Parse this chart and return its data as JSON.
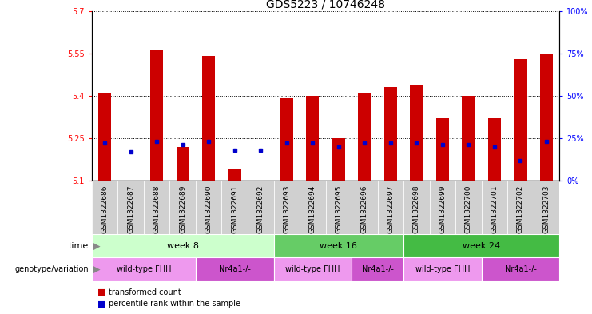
{
  "title": "GDS5223 / 10746248",
  "samples": [
    "GSM1322686",
    "GSM1322687",
    "GSM1322688",
    "GSM1322689",
    "GSM1322690",
    "GSM1322691",
    "GSM1322692",
    "GSM1322693",
    "GSM1322694",
    "GSM1322695",
    "GSM1322696",
    "GSM1322697",
    "GSM1322698",
    "GSM1322699",
    "GSM1322700",
    "GSM1322701",
    "GSM1322702",
    "GSM1322703"
  ],
  "transformed_count": [
    5.41,
    5.1,
    5.56,
    5.22,
    5.54,
    5.14,
    5.1,
    5.39,
    5.4,
    5.25,
    5.41,
    5.43,
    5.44,
    5.32,
    5.4,
    5.32,
    5.53,
    5.55
  ],
  "percentile_rank": [
    22,
    17,
    23,
    21,
    23,
    18,
    18,
    22,
    22,
    20,
    22,
    22,
    22,
    21,
    21,
    20,
    12,
    23
  ],
  "ylim_left": [
    5.1,
    5.7
  ],
  "ylim_right": [
    0,
    100
  ],
  "yticks_left": [
    5.1,
    5.25,
    5.4,
    5.55,
    5.7
  ],
  "yticks_right": [
    0,
    25,
    50,
    75,
    100
  ],
  "bar_color": "#cc0000",
  "dot_color": "#0000cc",
  "bar_width": 0.5,
  "background_color": "#ffffff",
  "title_fontsize": 10,
  "tick_label_fontsize": 7,
  "time_groups": [
    {
      "label": "week 8",
      "start": 0,
      "end": 7,
      "color": "#ccffcc"
    },
    {
      "label": "week 16",
      "start": 7,
      "end": 12,
      "color": "#66cc66"
    },
    {
      "label": "week 24",
      "start": 12,
      "end": 18,
      "color": "#44bb44"
    }
  ],
  "genotype_groups": [
    {
      "label": "wild-type FHH",
      "start": 0,
      "end": 4,
      "color": "#ee99ee"
    },
    {
      "label": "Nr4a1-/-",
      "start": 4,
      "end": 7,
      "color": "#cc55cc"
    },
    {
      "label": "wild-type FHH",
      "start": 7,
      "end": 10,
      "color": "#ee99ee"
    },
    {
      "label": "Nr4a1-/-",
      "start": 10,
      "end": 12,
      "color": "#cc55cc"
    },
    {
      "label": "wild-type FHH",
      "start": 12,
      "end": 15,
      "color": "#ee99ee"
    },
    {
      "label": "Nr4a1-/-",
      "start": 15,
      "end": 18,
      "color": "#cc55cc"
    }
  ]
}
